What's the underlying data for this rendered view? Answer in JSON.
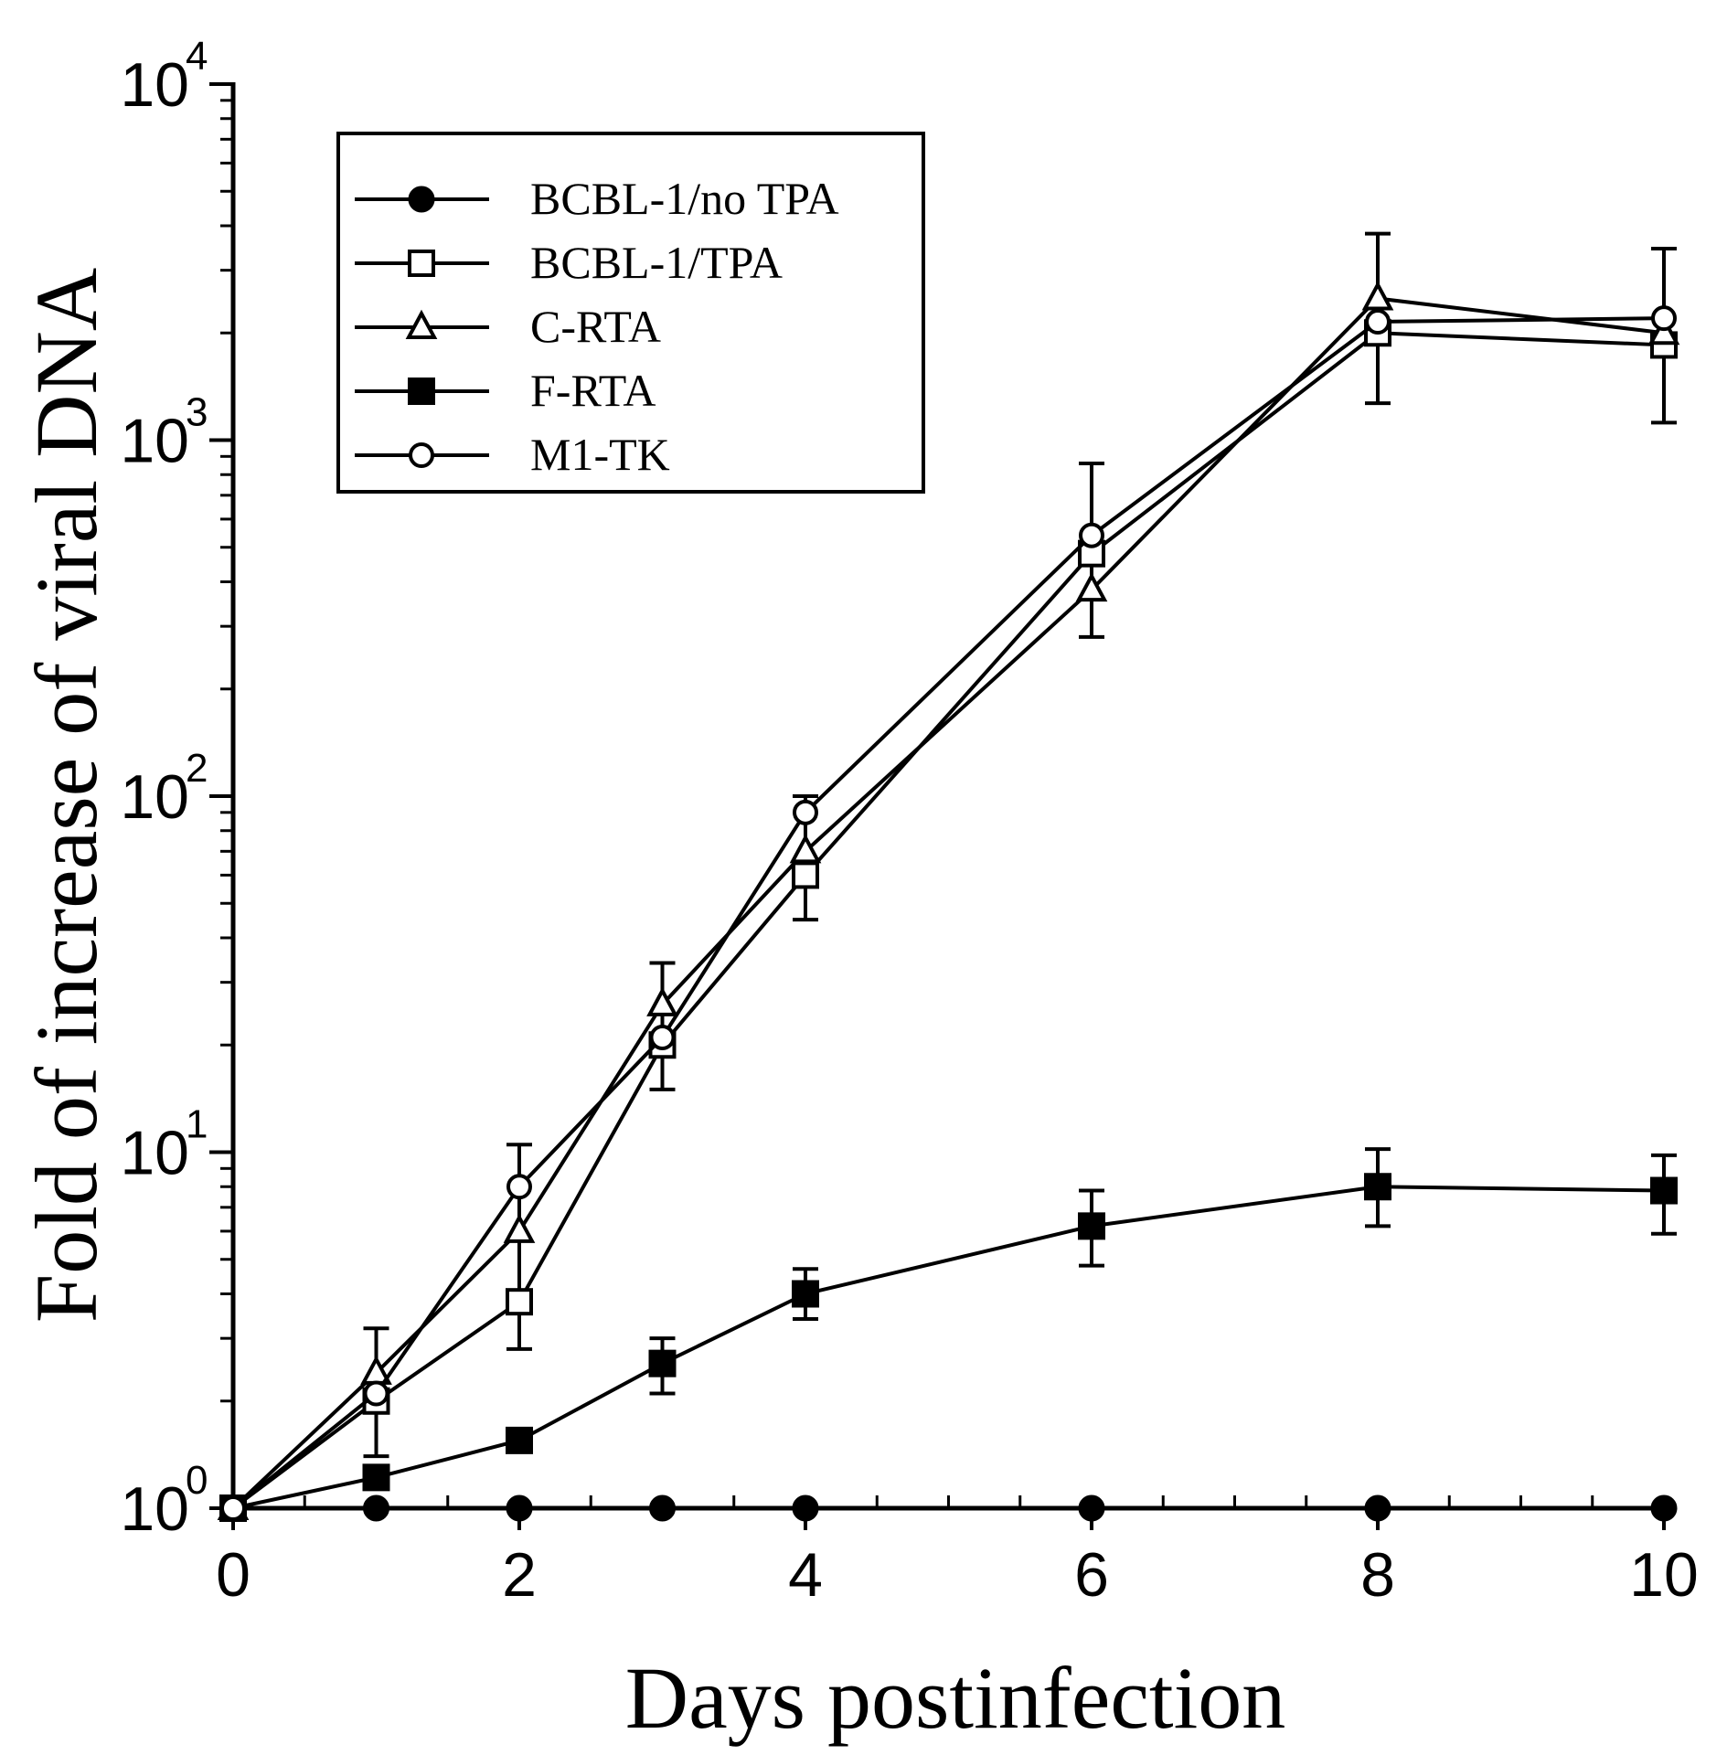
{
  "chart_data": {
    "type": "line",
    "xlabel": "Days postinfection",
    "ylabel": "Fold of increase of viral DNA",
    "xlim": [
      0,
      10
    ],
    "ylim": [
      1,
      10000
    ],
    "yscale": "log",
    "xticks": [
      0,
      2,
      4,
      6,
      8,
      10
    ],
    "xtick_labels": [
      "0",
      "2",
      "4",
      "6",
      "8",
      "10"
    ],
    "yticks": [
      {
        "base": "10",
        "exp": "0",
        "value": 1
      },
      {
        "base": "10",
        "exp": "1",
        "value": 10
      },
      {
        "base": "10",
        "exp": "2",
        "value": 100
      },
      {
        "base": "10",
        "exp": "3",
        "value": 1000
      },
      {
        "base": "10",
        "exp": "4",
        "value": 10000
      }
    ],
    "legend_position": "top-left",
    "series": [
      {
        "name": "BCBL-1/no TPA",
        "marker": "filled-circle",
        "x": [
          0,
          1,
          2,
          3,
          4,
          6,
          8,
          10
        ],
        "values": [
          1,
          1,
          1,
          1,
          1,
          1,
          1,
          1
        ],
        "err": [
          null,
          null,
          null,
          null,
          null,
          null,
          null,
          null
        ]
      },
      {
        "name": "BCBL-1/TPA",
        "marker": "open-square",
        "x": [
          0,
          1,
          2,
          3,
          4,
          6,
          8,
          10
        ],
        "values": [
          1,
          2.0,
          3.8,
          20,
          60,
          480,
          2000,
          1850
        ],
        "err": [
          null,
          [
            1.4,
            3.2
          ],
          [
            2.8,
            10.5
          ],
          [
            15,
            34
          ],
          [
            45,
            100
          ],
          [
            280,
            860
          ],
          [
            1270,
            3800
          ],
          [
            1120,
            3450
          ]
        ]
      },
      {
        "name": "C-RTA",
        "marker": "open-triangle",
        "x": [
          0,
          1,
          2,
          3,
          4,
          6,
          8,
          10
        ],
        "values": [
          1,
          2.4,
          6.0,
          26,
          70,
          380,
          2500,
          2000
        ],
        "err": [
          null,
          null,
          null,
          null,
          null,
          null,
          null,
          null
        ]
      },
      {
        "name": "F-RTA",
        "marker": "filled-square",
        "x": [
          0,
          1,
          2,
          3,
          4,
          6,
          8,
          10
        ],
        "values": [
          1,
          1.22,
          1.55,
          2.55,
          4.0,
          6.2,
          8.0,
          7.8
        ],
        "err": [
          null,
          null,
          null,
          [
            2.1,
            3.0
          ],
          [
            3.4,
            4.7
          ],
          [
            4.8,
            7.8
          ],
          [
            6.2,
            10.2
          ],
          [
            5.9,
            9.8
          ]
        ]
      },
      {
        "name": "M1-TK",
        "marker": "open-circle",
        "x": [
          0,
          1,
          2,
          3,
          4,
          6,
          8,
          10
        ],
        "values": [
          1,
          2.1,
          8.0,
          21,
          90,
          540,
          2150,
          2200
        ],
        "err": [
          null,
          null,
          null,
          null,
          null,
          null,
          null,
          null
        ]
      }
    ]
  }
}
